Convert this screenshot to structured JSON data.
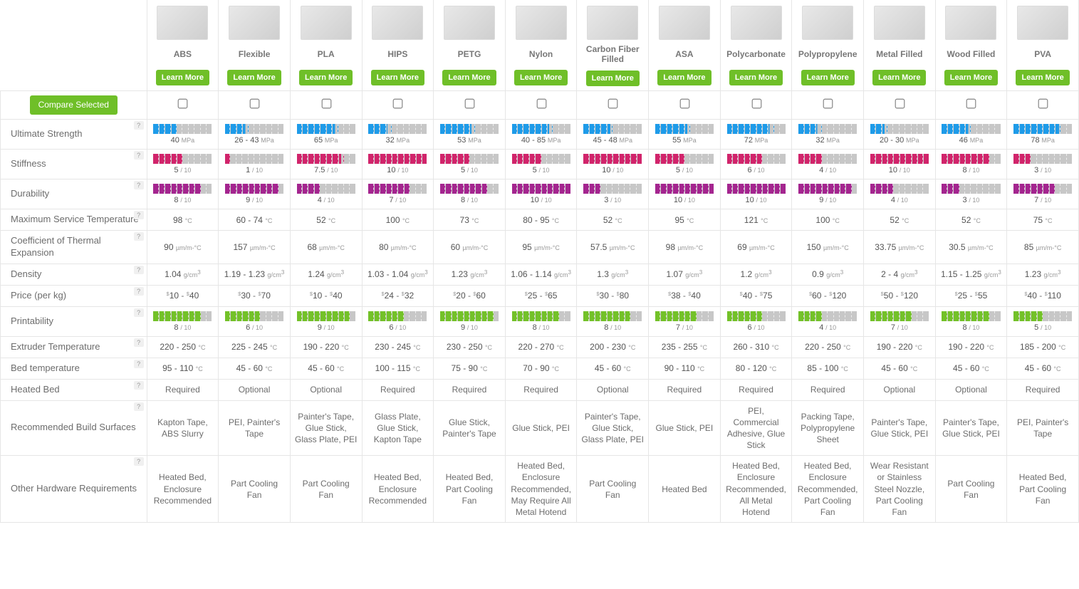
{
  "ui": {
    "compare_label": "Compare Selected",
    "learn_label": "Learn More"
  },
  "colors": {
    "strength": "#1e9be9",
    "stiffness": "#d1246b",
    "durability": "#a4258f",
    "printability": "#73c129",
    "empty": "#c7c7c7"
  },
  "materials": [
    {
      "name": "ABS"
    },
    {
      "name": "Flexible"
    },
    {
      "name": "PLA"
    },
    {
      "name": "HIPS"
    },
    {
      "name": "PETG"
    },
    {
      "name": "Nylon"
    },
    {
      "name": "Carbon Fiber Filled"
    },
    {
      "name": "ASA"
    },
    {
      "name": "Polycarbonate"
    },
    {
      "name": "Polypropylene"
    },
    {
      "name": "Metal Filled"
    },
    {
      "name": "Wood Filled"
    },
    {
      "name": "PVA"
    }
  ],
  "rows": [
    {
      "key": "strength",
      "label": "Ultimate Strength",
      "type": "bar",
      "color": "strength",
      "max": 100,
      "unit": "MPa",
      "values": [
        {
          "v": 40,
          "t": "40"
        },
        {
          "v": 35,
          "t": "26 - 43"
        },
        {
          "v": 65,
          "t": "65"
        },
        {
          "v": 32,
          "t": "32"
        },
        {
          "v": 53,
          "t": "53"
        },
        {
          "v": 63,
          "t": "40 - 85"
        },
        {
          "v": 47,
          "t": "45 - 48"
        },
        {
          "v": 55,
          "t": "55"
        },
        {
          "v": 72,
          "t": "72"
        },
        {
          "v": 32,
          "t": "32"
        },
        {
          "v": 25,
          "t": "20 - 30"
        },
        {
          "v": 46,
          "t": "46"
        },
        {
          "v": 78,
          "t": "78"
        }
      ]
    },
    {
      "key": "stiffness",
      "label": "Stiffness",
      "type": "bar",
      "color": "stiffness",
      "max": 10,
      "unit": "/ 10",
      "values": [
        {
          "v": 5,
          "t": "5"
        },
        {
          "v": 1,
          "t": "1"
        },
        {
          "v": 7.5,
          "t": "7.5"
        },
        {
          "v": 10,
          "t": "10"
        },
        {
          "v": 5,
          "t": "5"
        },
        {
          "v": 5,
          "t": "5"
        },
        {
          "v": 10,
          "t": "10"
        },
        {
          "v": 5,
          "t": "5"
        },
        {
          "v": 6,
          "t": "6"
        },
        {
          "v": 4,
          "t": "4"
        },
        {
          "v": 10,
          "t": "10"
        },
        {
          "v": 8,
          "t": "8"
        },
        {
          "v": 3,
          "t": "3"
        }
      ]
    },
    {
      "key": "durability",
      "label": "Durability",
      "type": "bar",
      "color": "durability",
      "max": 10,
      "unit": "/ 10",
      "values": [
        {
          "v": 8,
          "t": "8"
        },
        {
          "v": 9,
          "t": "9"
        },
        {
          "v": 4,
          "t": "4"
        },
        {
          "v": 7,
          "t": "7"
        },
        {
          "v": 8,
          "t": "8"
        },
        {
          "v": 10,
          "t": "10"
        },
        {
          "v": 3,
          "t": "3"
        },
        {
          "v": 10,
          "t": "10"
        },
        {
          "v": 10,
          "t": "10"
        },
        {
          "v": 9,
          "t": "9"
        },
        {
          "v": 4,
          "t": "4"
        },
        {
          "v": 3,
          "t": "3"
        },
        {
          "v": 7,
          "t": "7"
        }
      ]
    },
    {
      "key": "maxtemp",
      "label": "Maximum Service Temperature",
      "type": "text",
      "unit": "°C",
      "values": [
        "98",
        "60 - 74",
        "52",
        "100",
        "73",
        "80 - 95",
        "52",
        "95",
        "121",
        "100",
        "52",
        "52",
        "75"
      ]
    },
    {
      "key": "cte",
      "label": "Coefficient of Thermal Expansion",
      "type": "text",
      "unit": "µm/m-°C",
      "values": [
        "90",
        "157",
        "68",
        "80",
        "60",
        "95",
        "57.5",
        "98",
        "69",
        "150",
        "33.75",
        "30.5",
        "85"
      ]
    },
    {
      "key": "density",
      "label": "Density",
      "type": "text",
      "unit": "g/cm",
      "sup": "3",
      "values": [
        "1.04",
        "1.19 - 1.23",
        "1.24",
        "1.03 - 1.04",
        "1.23",
        "1.06 - 1.14",
        "1.3",
        "1.07",
        "1.2",
        "0.9",
        "2 - 4",
        "1.15 - 1.25",
        "1.23"
      ]
    },
    {
      "key": "price",
      "label": "Price (per kg)",
      "type": "price",
      "prefix": "$",
      "values": [
        [
          "10",
          "40"
        ],
        [
          "30",
          "70"
        ],
        [
          "10",
          "40"
        ],
        [
          "24",
          "32"
        ],
        [
          "20",
          "60"
        ],
        [
          "25",
          "65"
        ],
        [
          "30",
          "80"
        ],
        [
          "38",
          "40"
        ],
        [
          "40",
          "75"
        ],
        [
          "60",
          "120"
        ],
        [
          "50",
          "120"
        ],
        [
          "25",
          "55"
        ],
        [
          "40",
          "110"
        ]
      ]
    },
    {
      "key": "printability",
      "label": "Printability",
      "type": "bar",
      "color": "printability",
      "max": 10,
      "unit": "/ 10",
      "values": [
        {
          "v": 8,
          "t": "8"
        },
        {
          "v": 6,
          "t": "6"
        },
        {
          "v": 9,
          "t": "9"
        },
        {
          "v": 6,
          "t": "6"
        },
        {
          "v": 9,
          "t": "9"
        },
        {
          "v": 8,
          "t": "8"
        },
        {
          "v": 8,
          "t": "8"
        },
        {
          "v": 7,
          "t": "7"
        },
        {
          "v": 6,
          "t": "6"
        },
        {
          "v": 4,
          "t": "4"
        },
        {
          "v": 7,
          "t": "7"
        },
        {
          "v": 8,
          "t": "8"
        },
        {
          "v": 5,
          "t": "5"
        }
      ]
    },
    {
      "key": "exttemp",
      "label": "Extruder Temperature",
      "type": "text",
      "unit": "°C",
      "values": [
        "220 - 250",
        "225 - 245",
        "190 - 220",
        "230 - 245",
        "230 - 250",
        "220 - 270",
        "200 - 230",
        "235 - 255",
        "260 - 310",
        "220 - 250",
        "190 - 220",
        "190 - 220",
        "185 - 200"
      ]
    },
    {
      "key": "bedtemp",
      "label": "Bed temperature",
      "type": "text",
      "unit": "°C",
      "values": [
        "95 - 110",
        "45 - 60",
        "45 - 60",
        "100 - 115",
        "75 - 90",
        "70 - 90",
        "45 - 60",
        "90 - 110",
        "80 - 120",
        "85 - 100",
        "45 - 60",
        "45 - 60",
        "45 - 60"
      ]
    },
    {
      "key": "heated",
      "label": "Heated Bed",
      "type": "plain",
      "values": [
        "Required",
        "Optional",
        "Optional",
        "Required",
        "Required",
        "Required",
        "Optional",
        "Required",
        "Required",
        "Required",
        "Optional",
        "Optional",
        "Required"
      ]
    },
    {
      "key": "surface",
      "label": "Recommended Build Surfaces",
      "type": "plain",
      "values": [
        "Kapton Tape, ABS Slurry",
        "PEI, Painter's Tape",
        "Painter's Tape, Glue Stick, Glass Plate, PEI",
        "Glass Plate, Glue Stick, Kapton Tape",
        "Glue Stick, Painter's Tape",
        "Glue Stick, PEI",
        "Painter's Tape, Glue Stick, Glass Plate, PEI",
        "Glue Stick, PEI",
        "PEI, Commercial Adhesive, Glue Stick",
        "Packing Tape, Polypropylene Sheet",
        "Painter's Tape, Glue Stick, PEI",
        "Painter's Tape, Glue Stick, PEI",
        "PEI, Painter's Tape"
      ]
    },
    {
      "key": "hw",
      "label": "Other Hardware Requirements",
      "type": "plain",
      "values": [
        "Heated Bed, Enclosure Recommended",
        "Part Cooling Fan",
        "Part Cooling Fan",
        "Heated Bed, Enclosure Recommended",
        "Heated Bed, Part Cooling Fan",
        "Heated Bed, Enclosure Recommended, May Require All Metal Hotend",
        "Part Cooling Fan",
        "Heated Bed",
        "Heated Bed, Enclosure Recommended, All Metal Hotend",
        "Heated Bed, Enclosure Recommended, Part Cooling Fan",
        "Wear Resistant or Stainless Steel Nozzle, Part Cooling Fan",
        "Part Cooling Fan",
        "Heated Bed, Part Cooling Fan"
      ]
    }
  ]
}
